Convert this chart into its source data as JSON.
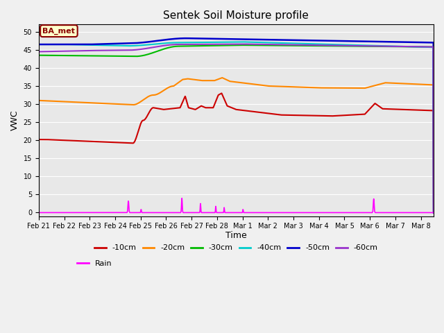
{
  "title": "Sentek Soil Moisture profile",
  "xlabel": "Time",
  "ylabel": "VWC",
  "legend_label": "BA_met",
  "ylim": [
    -1,
    52
  ],
  "xlim": [
    0,
    15.5
  ],
  "tick_labels": [
    "Feb 21",
    "Feb 22",
    "Feb 23",
    "Feb 24",
    "Feb 25",
    "Feb 26",
    "Feb 27",
    "Feb 28",
    "Mar 1",
    "Mar 2",
    "Mar 3",
    "Mar 4",
    "Mar 5",
    "Mar 6",
    "Mar 7",
    "Mar 8"
  ],
  "background_color": "#f0f0f0",
  "plot_bg_color": "#e8e8e8",
  "grid_color": "#ffffff",
  "series": {
    "d10": {
      "color": "#cc0000",
      "label": "-10cm",
      "linewidth": 1.5
    },
    "d20": {
      "color": "#ff8800",
      "label": "-20cm",
      "linewidth": 1.5
    },
    "d30": {
      "color": "#00bb00",
      "label": "-30cm",
      "linewidth": 1.5
    },
    "d40": {
      "color": "#00cccc",
      "label": "-40cm",
      "linewidth": 1.5
    },
    "d50": {
      "color": "#0000cc",
      "label": "-50cm",
      "linewidth": 1.8
    },
    "d60": {
      "color": "#9933cc",
      "label": "-60cm",
      "linewidth": 1.5
    },
    "rain": {
      "color": "#ff00ff",
      "label": "Rain",
      "linewidth": 1.2
    }
  }
}
